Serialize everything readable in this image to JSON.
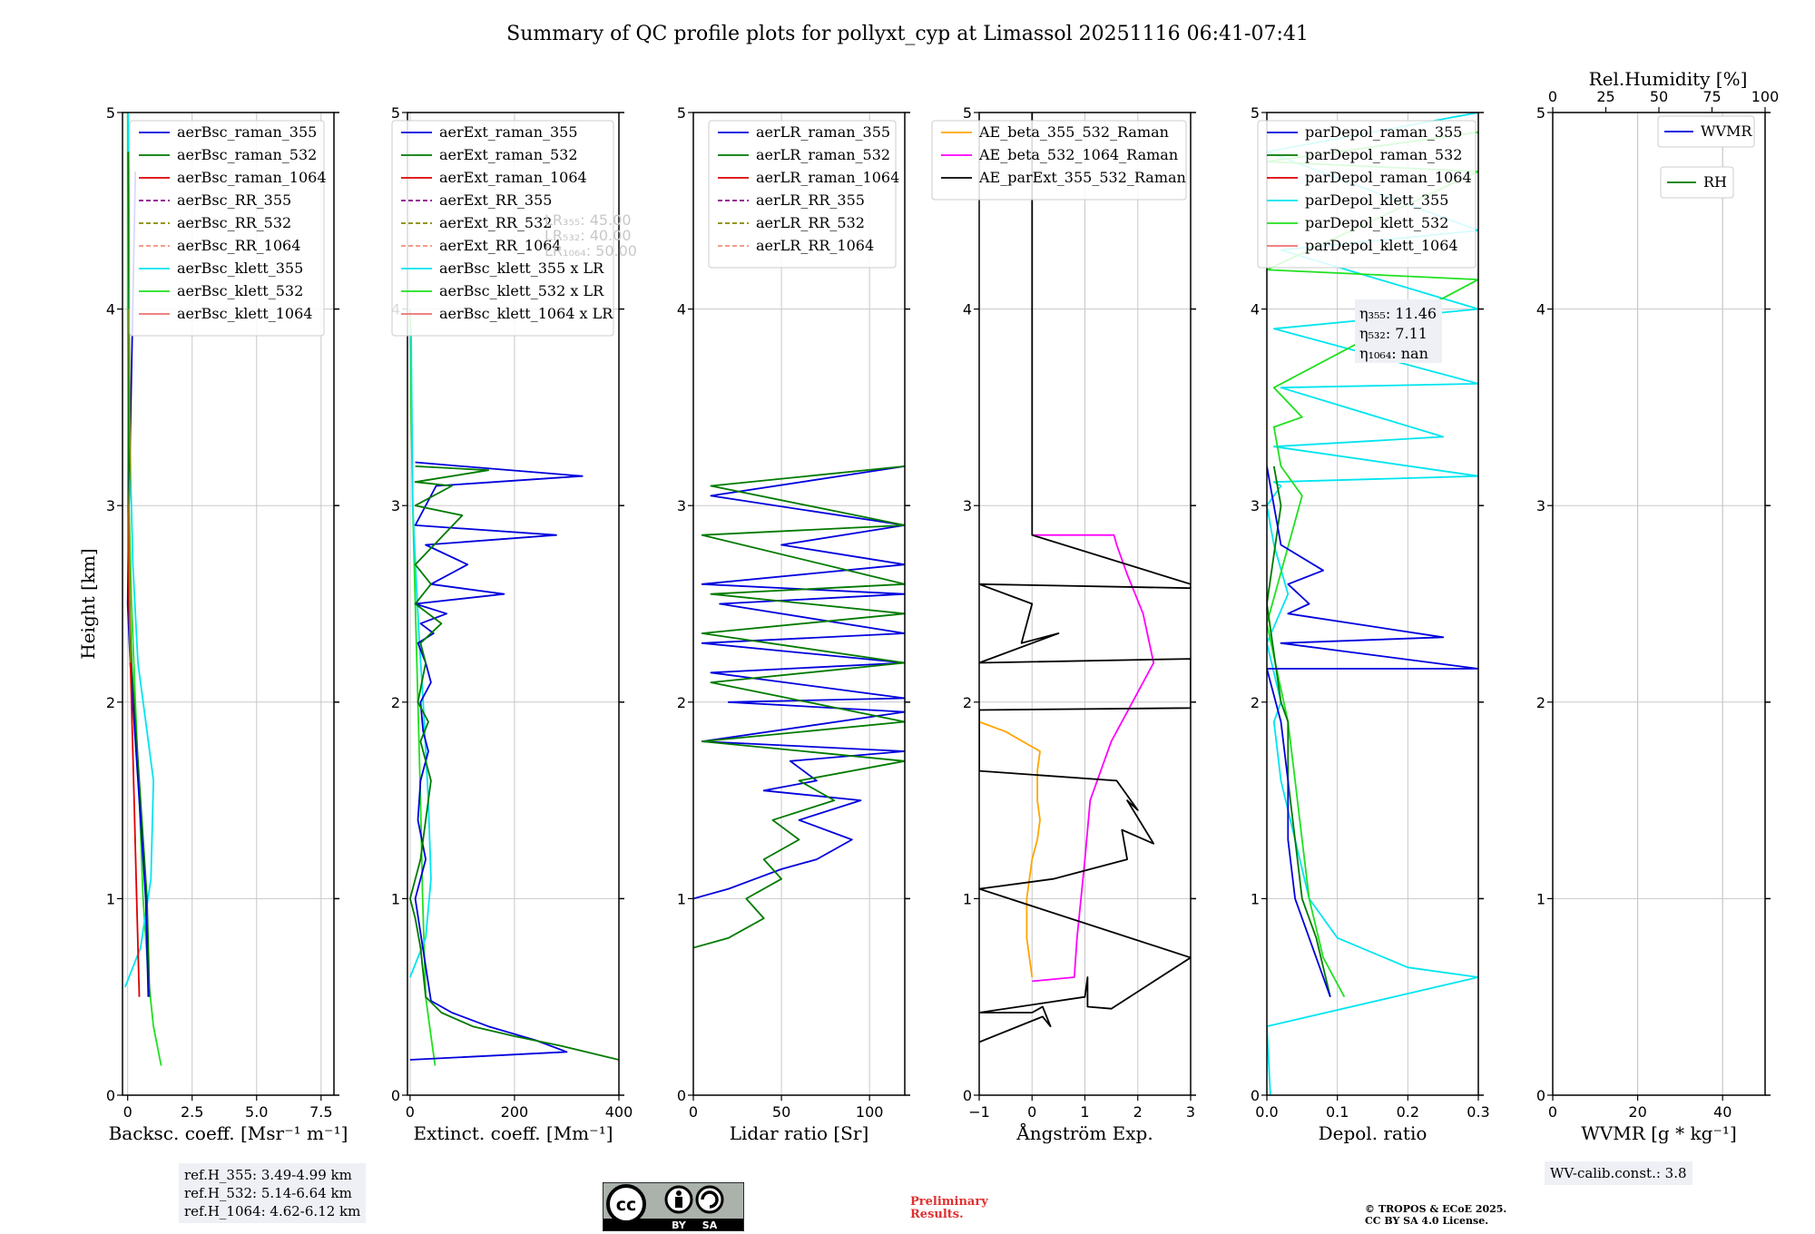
{
  "title": "Summary of QC profile plots for pollyxt_cyp at Limassol 20251116 06:41-07:41",
  "colors": {
    "blue": "#0000dd",
    "green": "#007a00",
    "red": "#dd0000",
    "purple": "#880088",
    "olive": "#888800",
    "salmon": "#f0907a",
    "cyan": "#00e5f0",
    "lime": "#20e020",
    "pink": "#f07070",
    "orange": "#ffa500",
    "magenta": "#ff00ff",
    "black": "#000000"
  },
  "chart_data": [
    {
      "type": "line",
      "id": "bsc",
      "xlabel": "Backsc. coeff. [Msr⁻¹ m⁻¹]",
      "ylabel": "Height [km]",
      "xlim": [
        -0.2,
        8
      ],
      "ylim": [
        0,
        5
      ],
      "xticks": [
        0,
        2.5,
        5.0,
        7.5
      ],
      "xtick_labels": [
        "0",
        "2.5",
        "5.0",
        "7.5"
      ],
      "yticks": [
        0,
        1,
        2,
        3,
        4,
        5
      ],
      "grid": true,
      "legend": "top-right",
      "legend_entries": [
        "aerBsc_raman_355",
        "aerBsc_raman_532",
        "aerBsc_raman_1064",
        "aerBsc_RR_355",
        "aerBsc_RR_532",
        "aerBsc_RR_1064",
        "aerBsc_klett_355",
        "aerBsc_klett_532",
        "aerBsc_klett_1064"
      ],
      "series": [
        {
          "name": "aerBsc_klett_532",
          "color": "lime",
          "x": [
            1.3,
            1.0,
            0.8,
            0.6,
            0.45,
            0.3,
            0.15,
            0.05,
            0.0,
            0.0
          ],
          "y": [
            0.15,
            0.35,
            0.6,
            1.0,
            1.5,
            2.0,
            2.5,
            3.0,
            4.0,
            5.0
          ]
        },
        {
          "name": "aerBsc_klett_355",
          "color": "cyan",
          "x": [
            -0.1,
            0.5,
            0.9,
            1.0,
            0.7,
            0.4,
            0.3,
            0.2,
            0.05,
            0.02
          ],
          "y": [
            0.55,
            0.75,
            1.1,
            1.6,
            1.9,
            2.2,
            2.45,
            2.7,
            3.5,
            5.0
          ]
        },
        {
          "name": "aerBsc_raman_532",
          "color": "green",
          "x": [
            0.85,
            0.75,
            0.55,
            0.35,
            0.15,
            0.05,
            0.02,
            0.05,
            0.02
          ],
          "y": [
            0.5,
            1.0,
            1.4,
            1.8,
            2.2,
            2.6,
            3.0,
            4.0,
            4.8
          ]
        },
        {
          "name": "aerBsc_raman_355",
          "color": "blue",
          "x": [
            0.8,
            0.7,
            0.5,
            0.3,
            0.1,
            0.0,
            0.05,
            0.3
          ],
          "y": [
            0.5,
            1.0,
            1.4,
            1.8,
            2.2,
            2.5,
            3.0,
            4.7
          ]
        },
        {
          "name": "aerBsc_raman_1064",
          "color": "red",
          "x": [
            0.45,
            0.35,
            0.25,
            0.15,
            0.05,
            0.02
          ],
          "y": [
            0.5,
            1.0,
            1.5,
            2.0,
            2.5,
            3.0
          ]
        },
        {
          "name": "aerBsc_klett_1064",
          "color": "olive",
          "x": [
            0.1,
            0.05,
            0.1,
            0.05
          ],
          "y": [
            2.2,
            3.0,
            3.2,
            4.0
          ]
        }
      ]
    },
    {
      "type": "line",
      "id": "ext",
      "xlabel": "Extinct. coeff. [Mm⁻¹]",
      "xlim": [
        -5,
        400
      ],
      "ylim": [
        0,
        5
      ],
      "xticks": [
        0,
        200,
        400
      ],
      "xtick_labels": [
        "0",
        "200",
        "400"
      ],
      "yticks": [
        0,
        1,
        2,
        3,
        4,
        5
      ],
      "grid": true,
      "legend": "top-right",
      "legend_entries": [
        "aerExt_raman_355",
        "aerExt_raman_532",
        "aerExt_raman_1064",
        "aerExt_RR_355",
        "aerExt_RR_532",
        "aerExt_RR_1064",
        "aerBsc_klett_355 x LR",
        "aerBsc_klett_532 x LR",
        "aerBsc_klett_1064 x LR"
      ],
      "lr_labels": [
        "LR₃₅₅: 45.00",
        "LR₅₃₂: 40.00",
        "LR₁₀₆₄: 50.00"
      ],
      "series": [
        {
          "name": "aerBsc_klett_532 x LR",
          "color": "lime",
          "x": [
            48,
            40,
            30,
            24,
            20,
            15,
            10,
            5,
            2,
            0
          ],
          "y": [
            0.15,
            0.3,
            0.5,
            1.0,
            1.5,
            2.0,
            2.5,
            3.0,
            3.5,
            4.0
          ]
        },
        {
          "name": "aerBsc_klett_355 x LR",
          "color": "cyan",
          "x": [
            0,
            30,
            40,
            35,
            25,
            18,
            12,
            5,
            2
          ],
          "y": [
            0.6,
            0.8,
            1.1,
            1.5,
            2.0,
            2.3,
            2.6,
            3.0,
            3.9
          ]
        },
        {
          "name": "aerExt_raman_355",
          "color": "blue",
          "x": [
            0,
            300,
            240,
            150,
            80,
            40,
            10,
            30,
            15,
            20,
            35,
            25,
            20,
            30,
            40,
            30,
            15,
            45,
            20,
            70,
            10,
            180,
            40,
            110,
            30,
            280,
            10,
            50,
            330,
            100,
            10
          ],
          "y": [
            0.18,
            0.22,
            0.28,
            0.35,
            0.42,
            0.48,
            1.0,
            1.2,
            1.4,
            1.6,
            1.75,
            1.85,
            2.0,
            2.05,
            2.1,
            2.2,
            2.3,
            2.35,
            2.4,
            2.45,
            2.5,
            2.55,
            2.6,
            2.7,
            2.8,
            2.85,
            2.9,
            3.1,
            3.15,
            3.2,
            3.22
          ]
        },
        {
          "name": "aerExt_raman_532",
          "color": "green",
          "x": [
            400,
            290,
            200,
            120,
            60,
            30,
            20,
            10,
            0,
            20,
            30,
            40,
            30,
            20,
            35,
            15,
            30,
            20,
            60,
            10,
            40,
            10,
            100,
            10,
            80,
            10,
            150,
            10
          ],
          "y": [
            0.18,
            0.25,
            0.3,
            0.35,
            0.42,
            0.5,
            0.75,
            0.9,
            1.0,
            1.2,
            1.4,
            1.6,
            1.7,
            1.8,
            1.9,
            2.0,
            2.2,
            2.3,
            2.4,
            2.5,
            2.6,
            2.7,
            2.95,
            3.0,
            3.1,
            3.12,
            3.18,
            3.2
          ]
        }
      ]
    },
    {
      "type": "line",
      "id": "lr",
      "xlabel": "Lidar ratio [Sr]",
      "xlim": [
        0,
        120
      ],
      "ylim": [
        0,
        5
      ],
      "xticks": [
        0,
        50,
        100
      ],
      "xtick_labels": [
        "0",
        "50",
        "100"
      ],
      "yticks": [
        0,
        1,
        2,
        3,
        4,
        5
      ],
      "grid": true,
      "legend": "top-right",
      "legend_entries": [
        "aerLR_raman_355",
        "aerLR_raman_532",
        "aerLR_raman_1064",
        "aerLR_RR_355",
        "aerLR_RR_532",
        "aerLR_RR_1064"
      ],
      "series": [
        {
          "name": "aerLR_raman_355",
          "color": "blue",
          "x": [
            0,
            20,
            35,
            50,
            70,
            90,
            60,
            95,
            40,
            70,
            55,
            120,
            5,
            120,
            20,
            120,
            10,
            120,
            5,
            120,
            15,
            120,
            5,
            120,
            50,
            120,
            10,
            120
          ],
          "y": [
            1.0,
            1.05,
            1.1,
            1.15,
            1.2,
            1.3,
            1.4,
            1.5,
            1.55,
            1.6,
            1.7,
            1.75,
            1.8,
            1.95,
            2.0,
            2.02,
            2.15,
            2.2,
            2.3,
            2.35,
            2.5,
            2.55,
            2.6,
            2.7,
            2.8,
            2.9,
            3.05,
            3.2
          ]
        },
        {
          "name": "aerLR_raman_532",
          "color": "green",
          "x": [
            0,
            20,
            40,
            30,
            50,
            40,
            60,
            45,
            80,
            60,
            120,
            5,
            120,
            10,
            120,
            5,
            120,
            10,
            120,
            5,
            120,
            10,
            120
          ],
          "y": [
            0.75,
            0.8,
            0.9,
            1.0,
            1.1,
            1.2,
            1.3,
            1.4,
            1.5,
            1.6,
            1.7,
            1.8,
            1.9,
            2.1,
            2.2,
            2.35,
            2.45,
            2.55,
            2.6,
            2.85,
            2.9,
            3.1,
            3.2
          ]
        }
      ]
    },
    {
      "type": "line",
      "id": "ae",
      "xlabel": "Ångström Exp.",
      "xlim": [
        -1,
        3
      ],
      "ylim": [
        0,
        5
      ],
      "xticks": [
        -1,
        0,
        1,
        2,
        3
      ],
      "xtick_labels": [
        "−1",
        "0",
        "1",
        "2",
        "3"
      ],
      "yticks": [
        0,
        1,
        2,
        3,
        4,
        5
      ],
      "grid": true,
      "legend": "top-left",
      "legend_entries": [
        "AE_beta_355_532_Raman",
        "AE_beta_532_1064_Raman",
        "AE_parExt_355_532_Raman"
      ],
      "series": [
        {
          "name": "AE_beta_355_532_Raman",
          "color": "orange",
          "x": [
            0.0,
            -0.1,
            -0.1,
            0.0,
            0.1,
            0.15,
            0.1,
            0.1,
            0.15,
            -0.5,
            -1.0
          ],
          "y": [
            0.6,
            0.8,
            1.0,
            1.2,
            1.3,
            1.4,
            1.5,
            1.65,
            1.75,
            1.85,
            1.9
          ]
        },
        {
          "name": "AE_beta_532_1064_Raman",
          "color": "magenta",
          "x": [
            0.0,
            0.8,
            0.85,
            1.0,
            1.1,
            1.5,
            1.9,
            2.3,
            2.1,
            1.8,
            1.6,
            1.55,
            0.0
          ],
          "y": [
            0.58,
            0.6,
            0.8,
            1.2,
            1.5,
            1.8,
            2.0,
            2.2,
            2.45,
            2.65,
            2.8,
            2.85,
            2.85
          ]
        },
        {
          "name": "AE_parExt_355_532_Raman",
          "color": "black",
          "x": [
            -1.0,
            0.2,
            0.35,
            0.2,
            0.0,
            -1.0,
            1.0,
            1.05,
            1.05,
            1.5,
            3.0,
            -1.0,
            0.4,
            1.8,
            1.7,
            2.3,
            1.8,
            2.0,
            1.6,
            -1.0,
            -1.0,
            3.0,
            3.0,
            -1.0,
            0.5,
            -0.2,
            0.0,
            -1.0,
            3.0,
            3.0,
            0.0,
            0.0
          ],
          "y": [
            0.27,
            0.4,
            0.35,
            0.45,
            0.42,
            0.42,
            0.5,
            0.6,
            0.45,
            0.44,
            0.7,
            1.05,
            1.1,
            1.2,
            1.35,
            1.28,
            1.5,
            1.45,
            1.6,
            1.65,
            1.96,
            1.97,
            2.22,
            2.2,
            2.35,
            2.3,
            2.5,
            2.6,
            2.58,
            2.6,
            2.85,
            5.0
          ]
        }
      ]
    },
    {
      "type": "line",
      "id": "depol",
      "xlabel": "Depol. ratio",
      "xlim": [
        0,
        0.3
      ],
      "ylim": [
        0,
        5
      ],
      "xticks": [
        0,
        0.1,
        0.2,
        0.3
      ],
      "xtick_labels": [
        "0.0",
        "0.1",
        "0.2",
        "0.3"
      ],
      "yticks": [
        0,
        1,
        2,
        3,
        4,
        5
      ],
      "grid": true,
      "legend": "top-right",
      "legend_entries": [
        "parDepol_raman_355",
        "parDepol_raman_532",
        "parDepol_raman_1064",
        "parDepol_klett_355",
        "parDepol_klett_532",
        "parDepol_klett_1064"
      ],
      "eta_labels": [
        "η₃₅₅: 11.46",
        "η₅₃₂: 7.11",
        "η₁₀₆₄: nan"
      ],
      "series": [
        {
          "name": "parDepol_klett_355",
          "color": "cyan",
          "x": [
            0.005,
            0.0,
            0.3,
            0.2,
            0.1,
            0.06,
            0.04,
            0.02,
            0.01,
            0.02,
            0.0,
            0.03,
            0.01,
            0.0,
            0.02,
            0.01,
            0.3,
            0.01,
            0.25,
            0.02,
            0.3,
            0.01,
            0.3,
            0.02,
            0.3,
            0.0,
            0.3
          ],
          "y": [
            0.0,
            0.35,
            0.6,
            0.65,
            0.8,
            1.0,
            1.3,
            1.6,
            1.9,
            2.0,
            2.3,
            2.55,
            2.8,
            3.0,
            3.1,
            3.12,
            3.15,
            3.3,
            3.35,
            3.6,
            3.62,
            3.9,
            4.0,
            4.3,
            4.4,
            4.8,
            5.0
          ]
        },
        {
          "name": "parDepol_klett_532",
          "color": "lime",
          "x": [
            0.11,
            0.08,
            0.06,
            0.05,
            0.04,
            0.03,
            0.0,
            0.05,
            0.02,
            0.01,
            0.05,
            0.01,
            0.3,
            0.0,
            0.3,
            0.0,
            0.3
          ],
          "y": [
            0.5,
            0.7,
            1.0,
            1.3,
            1.6,
            1.9,
            2.4,
            3.05,
            3.2,
            3.4,
            3.45,
            3.6,
            4.15,
            4.2,
            4.7,
            4.75,
            4.9
          ]
        },
        {
          "name": "parDepol_raman_532",
          "color": "green",
          "x": [
            0.09,
            0.07,
            0.05,
            0.04,
            0.03,
            0.03,
            0.02,
            0.0,
            0.02,
            0.01
          ],
          "y": [
            0.5,
            0.8,
            1.0,
            1.3,
            1.6,
            1.9,
            2.0,
            2.5,
            3.0,
            3.2
          ]
        },
        {
          "name": "parDepol_raman_355",
          "color": "blue",
          "x": [
            0.09,
            0.06,
            0.04,
            0.03,
            0.03,
            0.02,
            0.0,
            0.3,
            0.02,
            0.25,
            0.03,
            0.06,
            0.03,
            0.08,
            0.02,
            0.0
          ],
          "y": [
            0.5,
            0.8,
            1.0,
            1.3,
            1.6,
            1.9,
            2.17,
            2.17,
            2.3,
            2.33,
            2.45,
            2.5,
            2.6,
            2.67,
            2.8,
            3.2
          ]
        }
      ]
    },
    {
      "type": "line",
      "id": "wv",
      "xlabel": "WVMR [g * kg⁻¹]",
      "x2label": "Rel.Humidity [%]",
      "xlim": [
        0,
        50
      ],
      "ylim": [
        0,
        5
      ],
      "xticks": [
        0,
        20,
        40
      ],
      "xtick_labels": [
        "0",
        "20",
        "40"
      ],
      "x2ticks": [
        0,
        25,
        50,
        75,
        100
      ],
      "x2tick_labels": [
        "0",
        "25",
        "50",
        "75",
        "100"
      ],
      "yticks": [
        0,
        1,
        2,
        3,
        4,
        5
      ],
      "grid": true,
      "legend_entries": [
        "WVMR",
        "RH"
      ],
      "series": []
    }
  ],
  "ref_heights": [
    "ref.H_355: 3.49-4.99 km",
    "ref.H_532: 5.14-6.64 km",
    "ref.H_1064: 4.62-6.12 km"
  ],
  "wv_calib": "WV-calib.const.: 3.8",
  "preliminary": [
    "Preliminary",
    "Results."
  ],
  "copyright": [
    "© TROPOS & ECoE 2025.",
    "CC BY SA 4.0 License."
  ],
  "license_badge": {
    "cc": "cc",
    "by": "BY",
    "sa": "SA"
  }
}
